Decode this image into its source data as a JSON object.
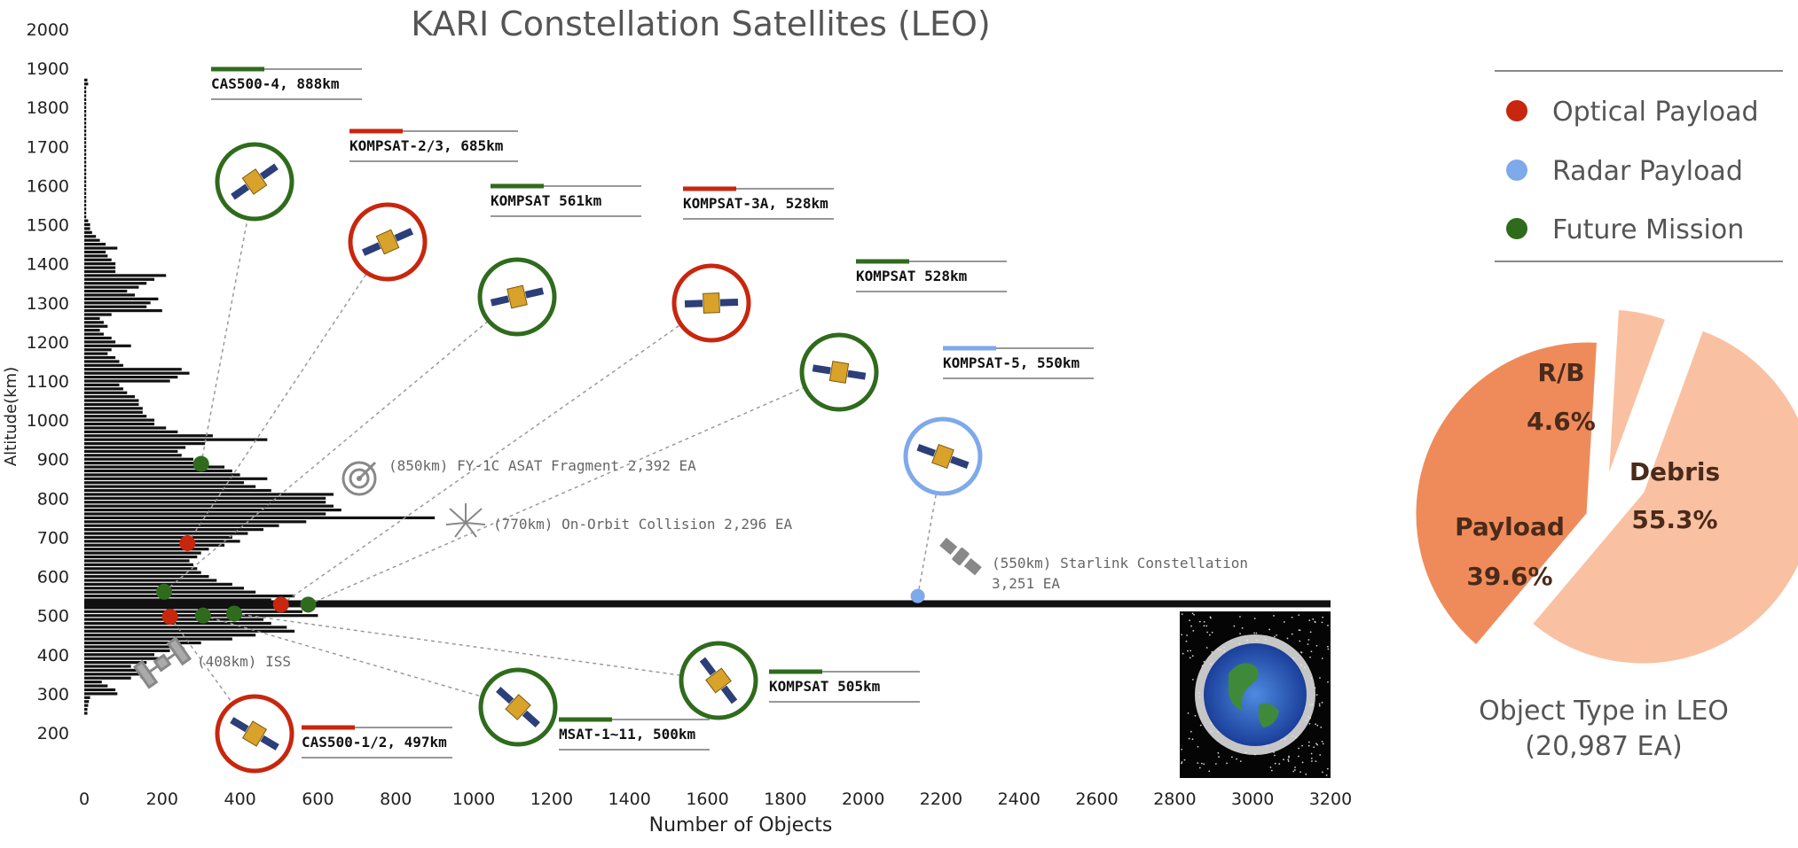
{
  "chart_data": {
    "type": "bar",
    "orientation": "horizontal",
    "title": "KARI Constellation Satellites (LEO)",
    "xlabel": "Number of Objects",
    "ylabel": "Altitude(km)",
    "xlim": [
      0,
      3200
    ],
    "ylim": [
      200,
      2000
    ],
    "x_ticks": [
      "0",
      "200",
      "400",
      "600",
      "800",
      "1000",
      "1200",
      "1400",
      "1600",
      "1800",
      "2000",
      "2200",
      "2400",
      "2600",
      "2800",
      "3000",
      "3200"
    ],
    "y_ticks": [
      "200",
      "300",
      "400",
      "500",
      "600",
      "700",
      "800",
      "900",
      "1000",
      "1100",
      "1200",
      "1300",
      "1400",
      "1500",
      "1600",
      "1700",
      "1800",
      "1900",
      "2000"
    ],
    "bins": {
      "altitudes": [
        250,
        260,
        270,
        280,
        290,
        300,
        310,
        320,
        330,
        340,
        350,
        360,
        370,
        380,
        390,
        400,
        410,
        420,
        430,
        440,
        450,
        460,
        470,
        480,
        490,
        500,
        510,
        520,
        530,
        540,
        550,
        560,
        570,
        580,
        590,
        600,
        610,
        620,
        630,
        640,
        650,
        660,
        670,
        680,
        690,
        700,
        710,
        720,
        730,
        740,
        750,
        760,
        770,
        780,
        790,
        800,
        810,
        820,
        830,
        840,
        850,
        860,
        870,
        880,
        890,
        900,
        910,
        920,
        930,
        940,
        950,
        960,
        970,
        980,
        990,
        1000,
        1010,
        1020,
        1030,
        1040,
        1050,
        1060,
        1070,
        1080,
        1090,
        1100,
        1110,
        1120,
        1130,
        1140,
        1150,
        1160,
        1170,
        1180,
        1190,
        1200,
        1210,
        1220,
        1230,
        1240,
        1250,
        1260,
        1270,
        1280,
        1290,
        1300,
        1310,
        1320,
        1330,
        1340,
        1350,
        1360,
        1370,
        1380,
        1390,
        1400,
        1410,
        1420,
        1430,
        1440,
        1450,
        1460,
        1470,
        1480,
        1490,
        1500,
        1510,
        1520,
        1530,
        1540,
        1550,
        1560,
        1570,
        1580,
        1590,
        1600,
        1610,
        1620,
        1630,
        1640,
        1650,
        1660,
        1670,
        1680,
        1690,
        1700,
        1710,
        1720,
        1730,
        1740,
        1750,
        1760,
        1770,
        1780,
        1790,
        1800,
        1810,
        1820,
        1830,
        1840,
        1850,
        1860,
        1870,
        1880,
        1890,
        1900,
        1910,
        1920,
        1930,
        1940,
        1950,
        1960,
        1970,
        1980,
        1990
      ],
      "counts": [
        8,
        8,
        10,
        12,
        15,
        85,
        80,
        60,
        45,
        120,
        170,
        140,
        120,
        160,
        200,
        180,
        220,
        240,
        300,
        380,
        440,
        540,
        520,
        480,
        460,
        600,
        560,
        520,
        3200,
        480,
        540,
        440,
        410,
        380,
        340,
        320,
        300,
        290,
        280,
        270,
        290,
        300,
        320,
        360,
        400,
        380,
        420,
        460,
        500,
        570,
        900,
        620,
        660,
        640,
        620,
        620,
        640,
        480,
        440,
        410,
        470,
        400,
        380,
        360,
        300,
        280,
        250,
        240,
        260,
        310,
        470,
        330,
        240,
        210,
        180,
        180,
        160,
        150,
        150,
        140,
        140,
        130,
        110,
        100,
        90,
        220,
        240,
        270,
        250,
        100,
        90,
        80,
        60,
        70,
        120,
        80,
        70,
        50,
        40,
        60,
        50,
        40,
        70,
        200,
        160,
        170,
        190,
        130,
        110,
        140,
        160,
        180,
        210,
        80,
        80,
        80,
        70,
        60,
        55,
        85,
        55,
        40,
        30,
        20,
        15,
        15,
        10,
        5,
        5,
        5,
        5,
        5,
        5,
        5,
        5,
        5,
        5,
        5,
        5,
        5,
        5,
        5,
        5,
        5,
        5,
        5,
        5,
        5,
        5,
        5,
        5,
        5,
        5,
        5,
        5,
        5,
        5,
        5,
        5,
        5,
        5,
        10,
        8
      ]
    },
    "missions": [
      {
        "label": "CAS500-4, 888km",
        "count": 300,
        "alt": 888,
        "type": "future"
      },
      {
        "label": "KOMPSAT-2/3, 685km",
        "count": 265,
        "alt": 685,
        "type": "optical"
      },
      {
        "label": "KOMPSAT 561km",
        "count": 205,
        "alt": 561,
        "type": "future"
      },
      {
        "label": "KOMPSAT-3A, 528km",
        "count": 505,
        "alt": 528,
        "type": "optical"
      },
      {
        "label": "KOMPSAT 528km",
        "count": 575,
        "alt": 528,
        "type": "future"
      },
      {
        "label": "KOMPSAT-5, 550km",
        "count": 2140,
        "alt": 550,
        "type": "radar"
      },
      {
        "label": "CAS500-1/2, 497km",
        "count": 220,
        "alt": 497,
        "type": "optical"
      },
      {
        "label": "MSAT-1~11, 500km",
        "count": 305,
        "alt": 500,
        "type": "future"
      },
      {
        "label": "KOMPSAT 505km",
        "count": 385,
        "alt": 505,
        "type": "future"
      }
    ],
    "annotations": [
      "(850km) FY-1C ASAT Fragment 2,392 EA",
      "(770km) On-Orbit Collision 2,296 EA",
      "(550km) Starlink Constellation",
      "3,251 EA",
      "(408km) ISS"
    ],
    "legend": {
      "placement": "top-right",
      "items": [
        {
          "name": "Optical Payload",
          "color": "#c8260e"
        },
        {
          "name": "Radar Payload",
          "color": "#7ea9ea"
        },
        {
          "name": "Future Mission",
          "color": "#2f6b1c"
        }
      ]
    },
    "pie": {
      "type": "pie",
      "title_line1": "Object Type in LEO",
      "title_line2": "(20,987 EA)",
      "slices": [
        {
          "name": "Debris",
          "value": 55.3,
          "label": "55.3%",
          "color": "#f9c1a2"
        },
        {
          "name": "Payload",
          "value": 39.6,
          "label": "39.6%",
          "color": "#ef8b5a"
        },
        {
          "name": "R/B",
          "value": 4.6,
          "label": "4.6%",
          "color": "#f9c1a2"
        }
      ]
    }
  },
  "colors": {
    "optical": "#c8260e",
    "radar": "#7ea9ea",
    "future": "#2f6b1c",
    "bar": "#111111"
  }
}
